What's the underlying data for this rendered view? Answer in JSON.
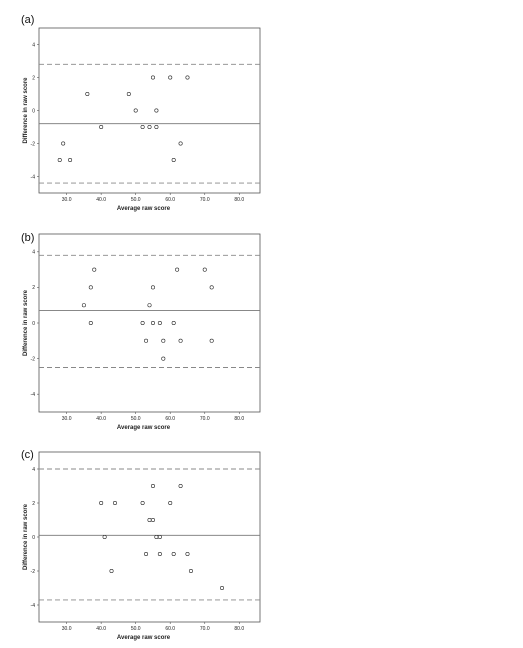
{
  "chart_data": [
    {
      "type": "scatter",
      "panel_label": "(a)",
      "xlabel": "Average raw score",
      "ylabel": "Difference in raw score",
      "xlim": [
        22,
        86
      ],
      "ylim": [
        -5,
        5
      ],
      "xticks": [
        "30.0",
        "40.0",
        "50.0",
        "60.0",
        "70.0",
        "80.0"
      ],
      "yticks": [
        "4",
        "2",
        "0",
        "-2",
        "-4"
      ],
      "mean_line": -0.8,
      "limits_of_agreement": [
        2.8,
        -4.4
      ],
      "points": [
        [
          29,
          -2
        ],
        [
          28,
          -3
        ],
        [
          31,
          -3
        ],
        [
          36,
          1
        ],
        [
          40,
          -1
        ],
        [
          48,
          1
        ],
        [
          50,
          0
        ],
        [
          52,
          -1
        ],
        [
          54,
          -1
        ],
        [
          55,
          2
        ],
        [
          56,
          -1
        ],
        [
          56,
          0
        ],
        [
          60,
          2
        ],
        [
          61,
          -3
        ],
        [
          63,
          -2
        ],
        [
          65,
          2
        ]
      ]
    },
    {
      "type": "scatter",
      "panel_label": "(b)",
      "xlabel": "Average raw score",
      "ylabel": "Difference in raw score",
      "xlim": [
        22,
        86
      ],
      "ylim": [
        -5,
        5
      ],
      "xticks": [
        "30.0",
        "40.0",
        "50.0",
        "60.0",
        "70.0",
        "80.0"
      ],
      "yticks": [
        "4",
        "2",
        "0",
        "-2",
        "-4"
      ],
      "mean_line": 0.7,
      "limits_of_agreement": [
        3.8,
        -2.5
      ],
      "points": [
        [
          35,
          1
        ],
        [
          37,
          2
        ],
        [
          38,
          3
        ],
        [
          37,
          0
        ],
        [
          52,
          0
        ],
        [
          53,
          -1
        ],
        [
          54,
          1
        ],
        [
          55,
          2
        ],
        [
          55,
          0
        ],
        [
          57,
          0
        ],
        [
          58,
          -2
        ],
        [
          58,
          -1
        ],
        [
          61,
          0
        ],
        [
          62,
          3
        ],
        [
          63,
          -1
        ],
        [
          70,
          3
        ],
        [
          72,
          2
        ],
        [
          72,
          -1
        ]
      ]
    },
    {
      "type": "scatter",
      "panel_label": "(c)",
      "xlabel": "Average raw score",
      "ylabel": "Difference in raw score",
      "xlim": [
        22,
        86
      ],
      "ylim": [
        -5,
        5
      ],
      "xticks": [
        "30.0",
        "40.0",
        "50.0",
        "60.0",
        "70.0",
        "80.0"
      ],
      "yticks": [
        "4",
        "2",
        "0",
        "-2",
        "-4"
      ],
      "mean_line": 0.1,
      "limits_of_agreement": [
        4.0,
        -3.7
      ],
      "points": [
        [
          40,
          2
        ],
        [
          41,
          0
        ],
        [
          43,
          -2
        ],
        [
          44,
          2
        ],
        [
          52,
          2
        ],
        [
          53,
          -1
        ],
        [
          54,
          1
        ],
        [
          55,
          1
        ],
        [
          55,
          3
        ],
        [
          56,
          0
        ],
        [
          57,
          -1
        ],
        [
          57,
          0
        ],
        [
          60,
          2
        ],
        [
          61,
          -1
        ],
        [
          63,
          3
        ],
        [
          65,
          -1
        ],
        [
          66,
          -2
        ],
        [
          75,
          -3
        ]
      ]
    }
  ]
}
